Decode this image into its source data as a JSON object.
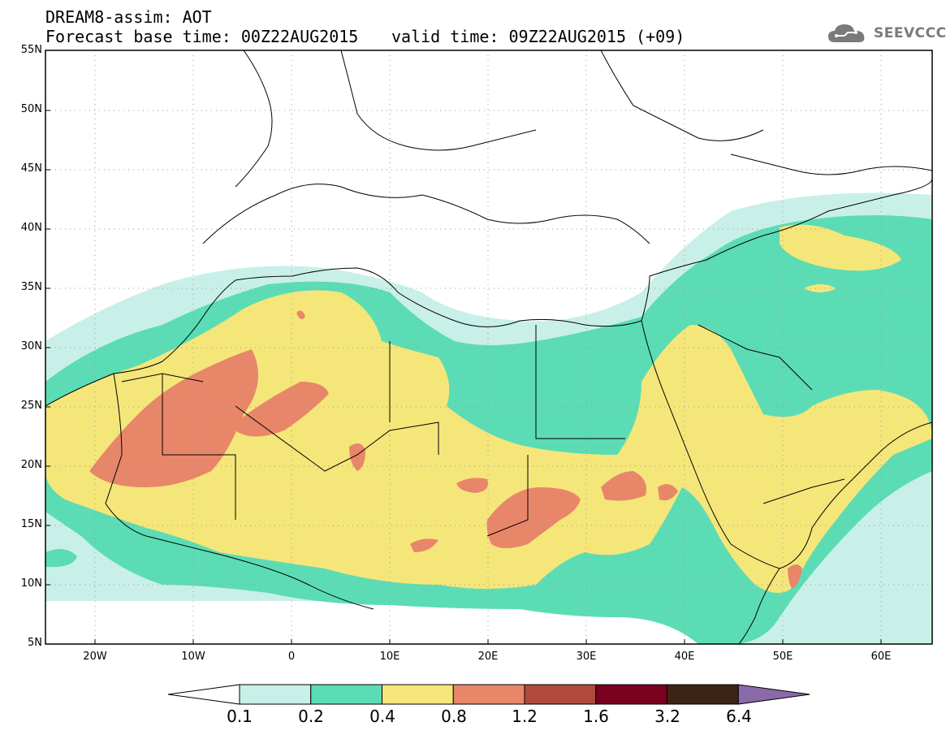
{
  "header": {
    "title_line1": "DREAM8-assim: AOT",
    "title_line2": "Forecast base time: 00Z22AUG2015",
    "valid_time": "valid time: 09Z22AUG2015 (+09)"
  },
  "logo": {
    "text": "SEEVCCC",
    "icon": "cloud-icon"
  },
  "map": {
    "variable": "AOT",
    "lat_labels": [
      "55N",
      "50N",
      "45N",
      "40N",
      "35N",
      "30N",
      "25N",
      "20N",
      "15N",
      "10N",
      "5N"
    ],
    "lon_labels": [
      "20W",
      "10W",
      "0",
      "10E",
      "20E",
      "30E",
      "40E",
      "50E",
      "60E"
    ]
  },
  "colorbar": {
    "labels": [
      "0.1",
      "0.2",
      "0.4",
      "0.8",
      "1.2",
      "1.6",
      "3.2",
      "6.4"
    ],
    "colors": [
      "#c8f0e8",
      "#5cdcb4",
      "#f5e67a",
      "#e8866a",
      "#b04a3c",
      "#7a0020",
      "#3c2414",
      "#8a6aa8"
    ]
  },
  "colors": {
    "level1": "#c8f0e8",
    "level2": "#5cdcb4",
    "level3": "#f5e67a",
    "level4": "#e8866a",
    "land_border": "#000000"
  }
}
